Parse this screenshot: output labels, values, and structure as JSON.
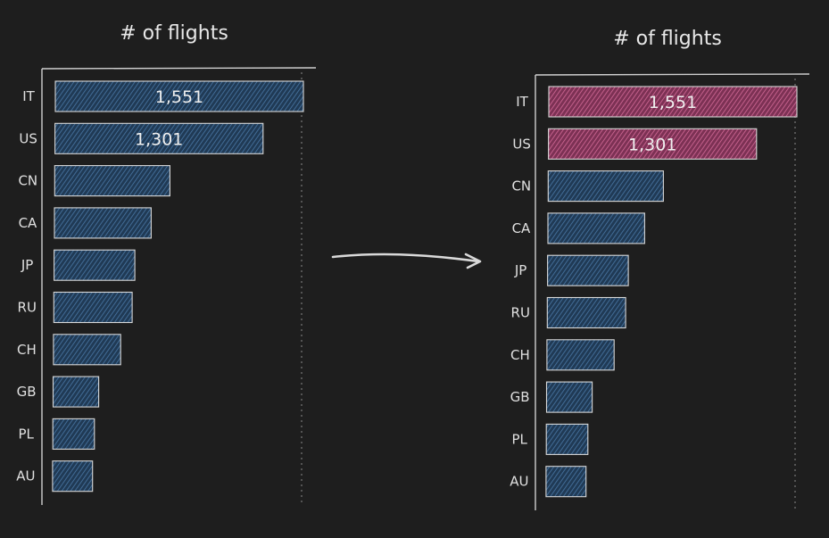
{
  "colors": {
    "background": "#1e1e1e",
    "bar_default": "#2f5478",
    "bar_highlight": "#b14e7a",
    "text": "#e8e8e8"
  },
  "connector_icon": "right-arrow-icon",
  "chart_data": [
    {
      "type": "bar",
      "orientation": "horizontal",
      "title": "# of flights",
      "categories": [
        "IT",
        "US",
        "CN",
        "CA",
        "JP",
        "RU",
        "CH",
        "GB",
        "PL",
        "AU"
      ],
      "values": [
        1551,
        1301,
        720,
        605,
        505,
        490,
        420,
        285,
        260,
        250
      ],
      "value_labels": [
        "1,551",
        "1,301",
        "",
        "",
        "",
        "",
        "",
        "",
        "",
        ""
      ],
      "highlighted": [
        false,
        false,
        false,
        false,
        false,
        false,
        false,
        false,
        false,
        false
      ],
      "xlim": [
        0,
        1551
      ],
      "grid": false
    },
    {
      "type": "bar",
      "orientation": "horizontal",
      "title": "# of flights",
      "categories": [
        "IT",
        "US",
        "CN",
        "CA",
        "JP",
        "RU",
        "CH",
        "GB",
        "PL",
        "AU"
      ],
      "values": [
        1551,
        1301,
        720,
        605,
        505,
        490,
        420,
        285,
        260,
        250
      ],
      "value_labels": [
        "1,551",
        "1,301",
        "",
        "",
        "",
        "",
        "",
        "",
        "",
        ""
      ],
      "highlighted": [
        true,
        true,
        false,
        false,
        false,
        false,
        false,
        false,
        false,
        false
      ],
      "xlim": [
        0,
        1551
      ],
      "grid": false
    }
  ]
}
